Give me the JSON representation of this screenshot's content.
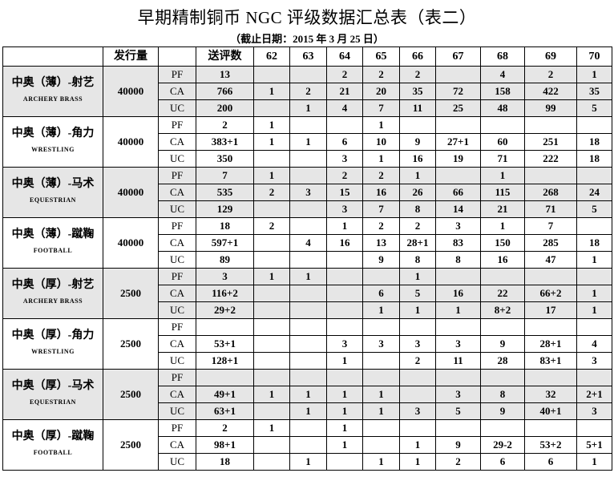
{
  "title": "早期精制铜币 NGC 评级数据汇总表（表二）",
  "subtitle": "（截止日期：2015 年 3 月 25 日）",
  "headers": [
    "",
    "发行量",
    "",
    "送评数",
    "62",
    "63",
    "64",
    "65",
    "66",
    "67",
    "68",
    "69",
    "70"
  ],
  "shade_color": "#e6e6e6",
  "groups": [
    {
      "name_cn": "中奥（薄）-射艺",
      "name_en": "ARCHERY   BRASS",
      "issue": "40000",
      "shaded": true,
      "rows": [
        {
          "grade": "PF",
          "values": [
            "13",
            "",
            "",
            "2",
            "2",
            "2",
            "",
            "4",
            "2",
            "1"
          ]
        },
        {
          "grade": "CA",
          "values": [
            "766",
            "1",
            "2",
            "21",
            "20",
            "35",
            "72",
            "158",
            "422",
            "35"
          ]
        },
        {
          "grade": "UC",
          "values": [
            "200",
            "",
            "1",
            "4",
            "7",
            "11",
            "25",
            "48",
            "99",
            "5"
          ]
        }
      ]
    },
    {
      "name_cn": "中奥（薄）-角力",
      "name_en": "WRESTLING",
      "issue": "40000",
      "shaded": false,
      "rows": [
        {
          "grade": "PF",
          "values": [
            "2",
            "1",
            "",
            "",
            "1",
            "",
            "",
            "",
            "",
            ""
          ]
        },
        {
          "grade": "CA",
          "values": [
            "383+1",
            "1",
            "1",
            "6",
            "10",
            "9",
            "27+1",
            "60",
            "251",
            "18"
          ]
        },
        {
          "grade": "UC",
          "values": [
            "350",
            "",
            "",
            "3",
            "1",
            "16",
            "19",
            "71",
            "222",
            "18"
          ]
        }
      ]
    },
    {
      "name_cn": "中奥（薄）-马术",
      "name_en": "EQUESTRIAN",
      "issue": "40000",
      "shaded": true,
      "rows": [
        {
          "grade": "PF",
          "values": [
            "7",
            "1",
            "",
            "2",
            "2",
            "1",
            "",
            "1",
            "",
            ""
          ]
        },
        {
          "grade": "CA",
          "values": [
            "535",
            "2",
            "3",
            "15",
            "16",
            "26",
            "66",
            "115",
            "268",
            "24"
          ]
        },
        {
          "grade": "UC",
          "values": [
            "129",
            "",
            "",
            "3",
            "7",
            "8",
            "14",
            "21",
            "71",
            "5"
          ]
        }
      ]
    },
    {
      "name_cn": "中奥（薄）-蹴鞠",
      "name_en": "FOOTBALL",
      "issue": "40000",
      "shaded": false,
      "rows": [
        {
          "grade": "PF",
          "values": [
            "18",
            "2",
            "",
            "1",
            "2",
            "2",
            "3",
            "1",
            "7",
            ""
          ]
        },
        {
          "grade": "CA",
          "values": [
            "597+1",
            "",
            "4",
            "16",
            "13",
            "28+1",
            "83",
            "150",
            "285",
            "18"
          ]
        },
        {
          "grade": "UC",
          "values": [
            "89",
            "",
            "",
            "",
            "9",
            "8",
            "8",
            "16",
            "47",
            "1"
          ]
        }
      ]
    },
    {
      "name_cn": "中奥（厚）-射艺",
      "name_en": "ARCHERY   BRASS",
      "issue": "2500",
      "shaded": true,
      "rows": [
        {
          "grade": "PF",
          "values": [
            "3",
            "1",
            "1",
            "",
            "",
            "1",
            "",
            "",
            "",
            ""
          ]
        },
        {
          "grade": "CA",
          "values": [
            "116+2",
            "",
            "",
            "",
            "6",
            "5",
            "16",
            "22",
            "66+2",
            "1"
          ]
        },
        {
          "grade": "UC",
          "values": [
            "29+2",
            "",
            "",
            "",
            "1",
            "1",
            "1",
            "8+2",
            "17",
            "1"
          ]
        }
      ]
    },
    {
      "name_cn": "中奥（厚）-角力",
      "name_en": "WRESTLING",
      "issue": "2500",
      "shaded": false,
      "rows": [
        {
          "grade": "PF",
          "values": [
            "",
            "",
            "",
            "",
            "",
            "",
            "",
            "",
            "",
            ""
          ]
        },
        {
          "grade": "CA",
          "values": [
            "53+1",
            "",
            "",
            "3",
            "3",
            "3",
            "3",
            "9",
            "28+1",
            "4"
          ]
        },
        {
          "grade": "UC",
          "values": [
            "128+1",
            "",
            "",
            "1",
            "",
            "2",
            "11",
            "28",
            "83+1",
            "3"
          ]
        }
      ]
    },
    {
      "name_cn": "中奥（厚）-马术",
      "name_en": "EQUESTRIAN",
      "issue": "2500",
      "shaded": true,
      "rows": [
        {
          "grade": "PF",
          "values": [
            "",
            "",
            "",
            "",
            "",
            "",
            "",
            "",
            "",
            ""
          ]
        },
        {
          "grade": "CA",
          "values": [
            "49+1",
            "1",
            "1",
            "1",
            "1",
            "",
            "3",
            "8",
            "32",
            "2+1"
          ]
        },
        {
          "grade": "UC",
          "values": [
            "63+1",
            "",
            "1",
            "1",
            "1",
            "3",
            "5",
            "9",
            "40+1",
            "3"
          ]
        }
      ]
    },
    {
      "name_cn": "中奥（厚）-蹴鞠",
      "name_en": "FOOTBALL",
      "issue": "2500",
      "shaded": false,
      "rows": [
        {
          "grade": "PF",
          "values": [
            "2",
            "1",
            "",
            "1",
            "",
            "",
            "",
            "",
            "",
            ""
          ]
        },
        {
          "grade": "CA",
          "values": [
            "98+1",
            "",
            "",
            "1",
            "",
            "1",
            "9",
            "29-2",
            "53+2",
            "5+1"
          ]
        },
        {
          "grade": "UC",
          "values": [
            "18",
            "",
            "1",
            "",
            "1",
            "1",
            "2",
            "6",
            "6",
            "1"
          ]
        }
      ]
    }
  ]
}
